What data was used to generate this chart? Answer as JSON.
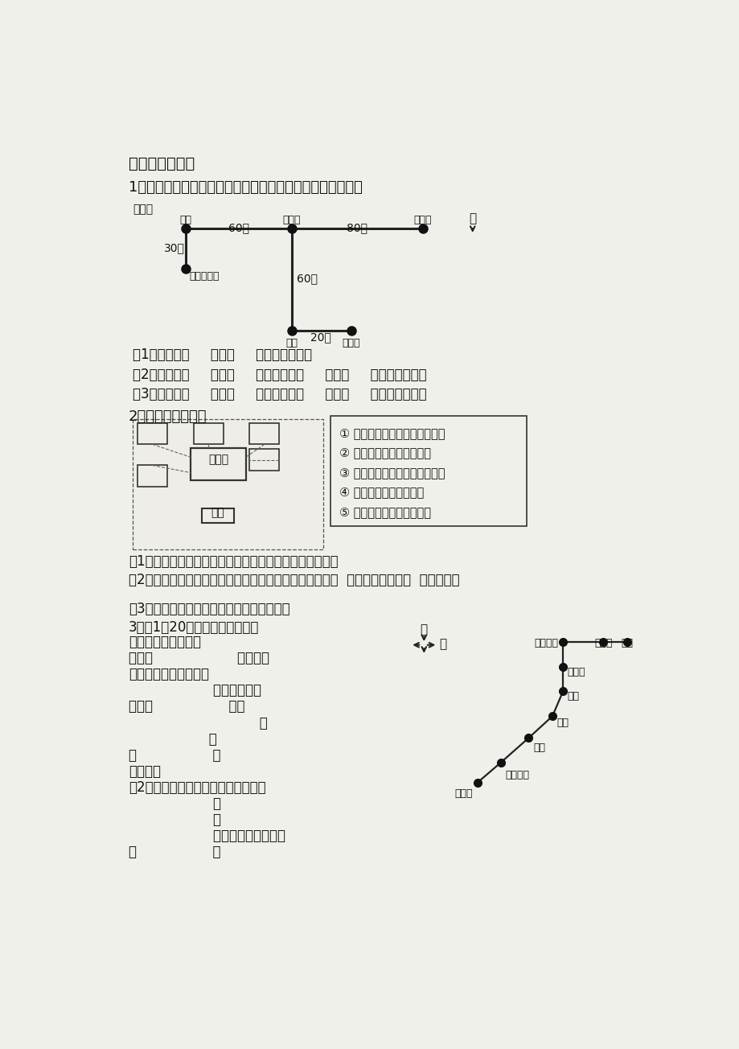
{
  "bg_color": "#f0f0eb",
  "text_color": "#111111",
  "title1": "二、解决问题：",
  "q1": "1、三个小朋友都从家出发去看电影，请你根据下图填一填。",
  "legend_label": "图标：",
  "q1_sub": [
    "（1）奇奇向（     ）走（     ）米到电影院。",
    "（2）格格向（     ）走（     ）米，再向（     ）走（     ）米到电影院。",
    "（3）皮皮向（     ）走（     ）米，再向（     ）走（     ）米到电影院。"
  ],
  "q2_title": "2、根据描述填图。",
  "q2_desc": [
    "① 鸟的天堂在小树林的东北角；",
    "② 熊猫馆在小树林的东面；",
    "③ 海底世界在小树林的西南角；",
    "④ 猴山在小树林的北面；",
    "⑤ 虎山在小树林的西北角。"
  ],
  "q2_sub1": "（1）根据上面的描述，用序号在方框中标出它们的位置。",
  "q2_sub2": "（2）小明从大门进去，想到虎山去玩，那么他可以先向（  ）方向走，再朝（  ）方向走。",
  "q2_sub3": "（3）请你写一写从大门到鸟的天堂的路线：",
  "q3_title": "3、（1）20路汽车从火车站到体",
  "q3_lines": [
    "育馆的行驶路线是：",
    "先向（                    ）行驶（",
    "站到新新小区，再向（",
    "                    ）站到菜场，",
    "行驶（                  再向",
    "                               ）",
    "                   站",
    "（                  （",
    "体育馆。",
    "（2）从机场到南园的行驶路线是：向",
    "                    ）",
    "                    行",
    "                    驶）站到百货商店，",
    "（                  （"
  ]
}
